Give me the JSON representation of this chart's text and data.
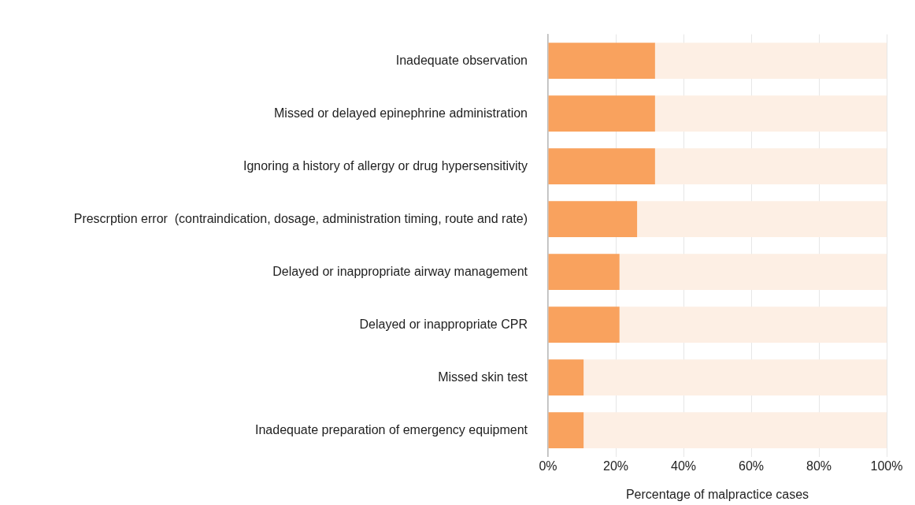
{
  "chart_data": {
    "type": "bar",
    "orientation": "horizontal",
    "stacked": true,
    "categories": [
      "Inadequate observation",
      "Missed or delayed epinephrine administration",
      "Ignoring a history of allergy or drug hypersensitivity",
      "Prescrption error  (contraindication, dosage, administration timing, route and rate)",
      "Delayed or inappropriate airway management",
      "Delayed or inappropriate CPR",
      "Missed skin test",
      "Inadequate preparation of emergency equipment"
    ],
    "series": [
      {
        "color": "#f9a25e",
        "values": [
          31.6,
          31.6,
          31.6,
          26.3,
          21.1,
          21.1,
          10.5,
          10.5
        ]
      },
      {
        "color": "#fdefe4",
        "values": [
          68.4,
          68.4,
          68.4,
          73.7,
          78.9,
          78.9,
          89.5,
          89.5
        ]
      }
    ],
    "xlabel": "Percentage of malpractice cases",
    "xlim": [
      0,
      100
    ],
    "xticks": [
      {
        "value": 0,
        "label": "0%"
      },
      {
        "value": 20,
        "label": "20%"
      },
      {
        "value": 40,
        "label": "40%"
      },
      {
        "value": 60,
        "label": "60%"
      },
      {
        "value": 80,
        "label": "80%"
      },
      {
        "value": 100,
        "label": "100%"
      }
    ],
    "grid": "x",
    "legend": false
  }
}
